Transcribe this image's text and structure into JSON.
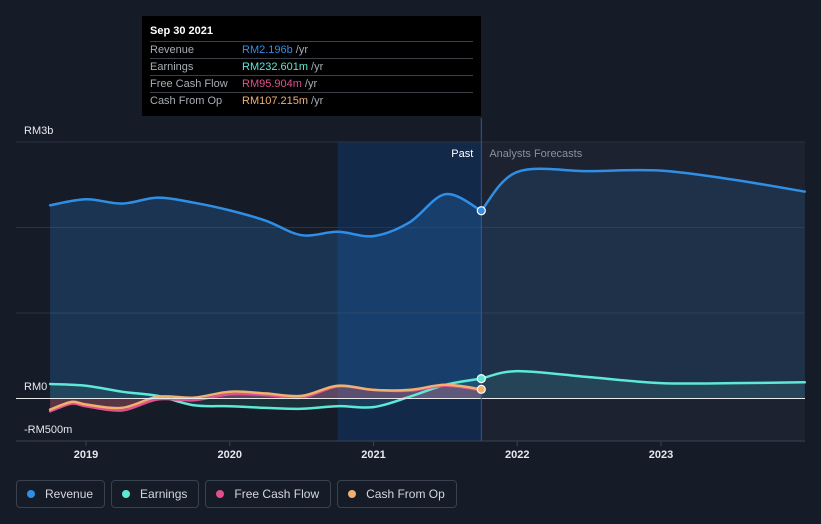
{
  "tooltip": {
    "date": "Sep 30 2021",
    "rows": [
      {
        "label": "Revenue",
        "value": "RM2.196b",
        "unit": "/yr",
        "color": "#2f8fe6"
      },
      {
        "label": "Earnings",
        "value": "RM232.601m",
        "unit": "/yr",
        "color": "#5ee8d6"
      },
      {
        "label": "Free Cash Flow",
        "value": "RM95.904m",
        "unit": "/yr",
        "color": "#e0508c"
      },
      {
        "label": "Cash From Op",
        "value": "RM107.215m",
        "unit": "/yr",
        "color": "#f0b070"
      }
    ]
  },
  "legend": [
    {
      "label": "Revenue",
      "color": "#2f8fe6"
    },
    {
      "label": "Earnings",
      "color": "#5ee8d6"
    },
    {
      "label": "Free Cash Flow",
      "color": "#e0508c"
    },
    {
      "label": "Cash From Op",
      "color": "#f0b070"
    }
  ],
  "chart_data": {
    "type": "line",
    "title": "",
    "xlabel": "",
    "ylabel": "",
    "currency": "RM",
    "xlim": [
      2018.7,
      2024.0
    ],
    "ylim": [
      -500,
      3000
    ],
    "y_tick_labels": [
      {
        "value": 3000,
        "label": "RM3b"
      },
      {
        "value": 0,
        "label": "RM0"
      },
      {
        "value": -500,
        "label": "-RM500m"
      }
    ],
    "x_tick_labels": [
      {
        "value": 2019,
        "label": "2019"
      },
      {
        "value": 2020,
        "label": "2020"
      },
      {
        "value": 2021,
        "label": "2021"
      },
      {
        "value": 2022,
        "label": "2022"
      },
      {
        "value": 2023,
        "label": "2023"
      }
    ],
    "past_label": "Past",
    "forecast_label": "Analysts Forecasts",
    "past_end_x": 2021.75,
    "highlight_start_x": 2020.75,
    "series": [
      {
        "name": "Revenue",
        "color": "#2f8fe6",
        "x": [
          2018.75,
          2019.0,
          2019.25,
          2019.5,
          2019.75,
          2020.0,
          2020.25,
          2020.5,
          2020.75,
          2021.0,
          2021.25,
          2021.5,
          2021.75
        ],
        "values": [
          2260,
          2330,
          2280,
          2350,
          2290,
          2200,
          2080,
          1910,
          1950,
          1900,
          2060,
          2390,
          2196
        ]
      },
      {
        "name": "Revenue Forecast",
        "color": "#2f8fe6",
        "forecast": true,
        "x": [
          2021.75,
          2022.0,
          2022.5,
          2023.0,
          2023.5,
          2024.0
        ],
        "values": [
          2196,
          2650,
          2660,
          2665,
          2560,
          2420
        ]
      },
      {
        "name": "Earnings",
        "color": "#5ee8d6",
        "x": [
          2018.75,
          2019.0,
          2019.25,
          2019.5,
          2019.75,
          2020.0,
          2020.25,
          2020.5,
          2020.75,
          2021.0,
          2021.25,
          2021.5,
          2021.75
        ],
        "values": [
          170,
          150,
          80,
          30,
          -80,
          -90,
          -110,
          -120,
          -90,
          -100,
          20,
          160,
          232.6
        ]
      },
      {
        "name": "Earnings Forecast",
        "color": "#5ee8d6",
        "forecast": true,
        "x": [
          2021.75,
          2022.0,
          2022.5,
          2023.0,
          2023.5,
          2024.0
        ],
        "values": [
          232.6,
          320,
          250,
          180,
          180,
          190
        ]
      },
      {
        "name": "Free Cash Flow",
        "color": "#e0508c",
        "x": [
          2018.75,
          2018.9,
          2019.0,
          2019.25,
          2019.5,
          2019.75,
          2020.0,
          2020.25,
          2020.5,
          2020.75,
          2021.0,
          2021.25,
          2021.5,
          2021.75
        ],
        "values": [
          -150,
          -60,
          -90,
          -140,
          -10,
          -20,
          50,
          40,
          10,
          140,
          100,
          90,
          150,
          95.9
        ]
      },
      {
        "name": "Cash From Op",
        "color": "#f0b070",
        "x": [
          2018.75,
          2018.9,
          2019.0,
          2019.25,
          2019.5,
          2019.75,
          2020.0,
          2020.25,
          2020.5,
          2020.75,
          2021.0,
          2021.25,
          2021.5,
          2021.75
        ],
        "values": [
          -130,
          -40,
          -70,
          -110,
          20,
          10,
          80,
          60,
          30,
          150,
          100,
          100,
          160,
          107.2
        ]
      }
    ]
  }
}
